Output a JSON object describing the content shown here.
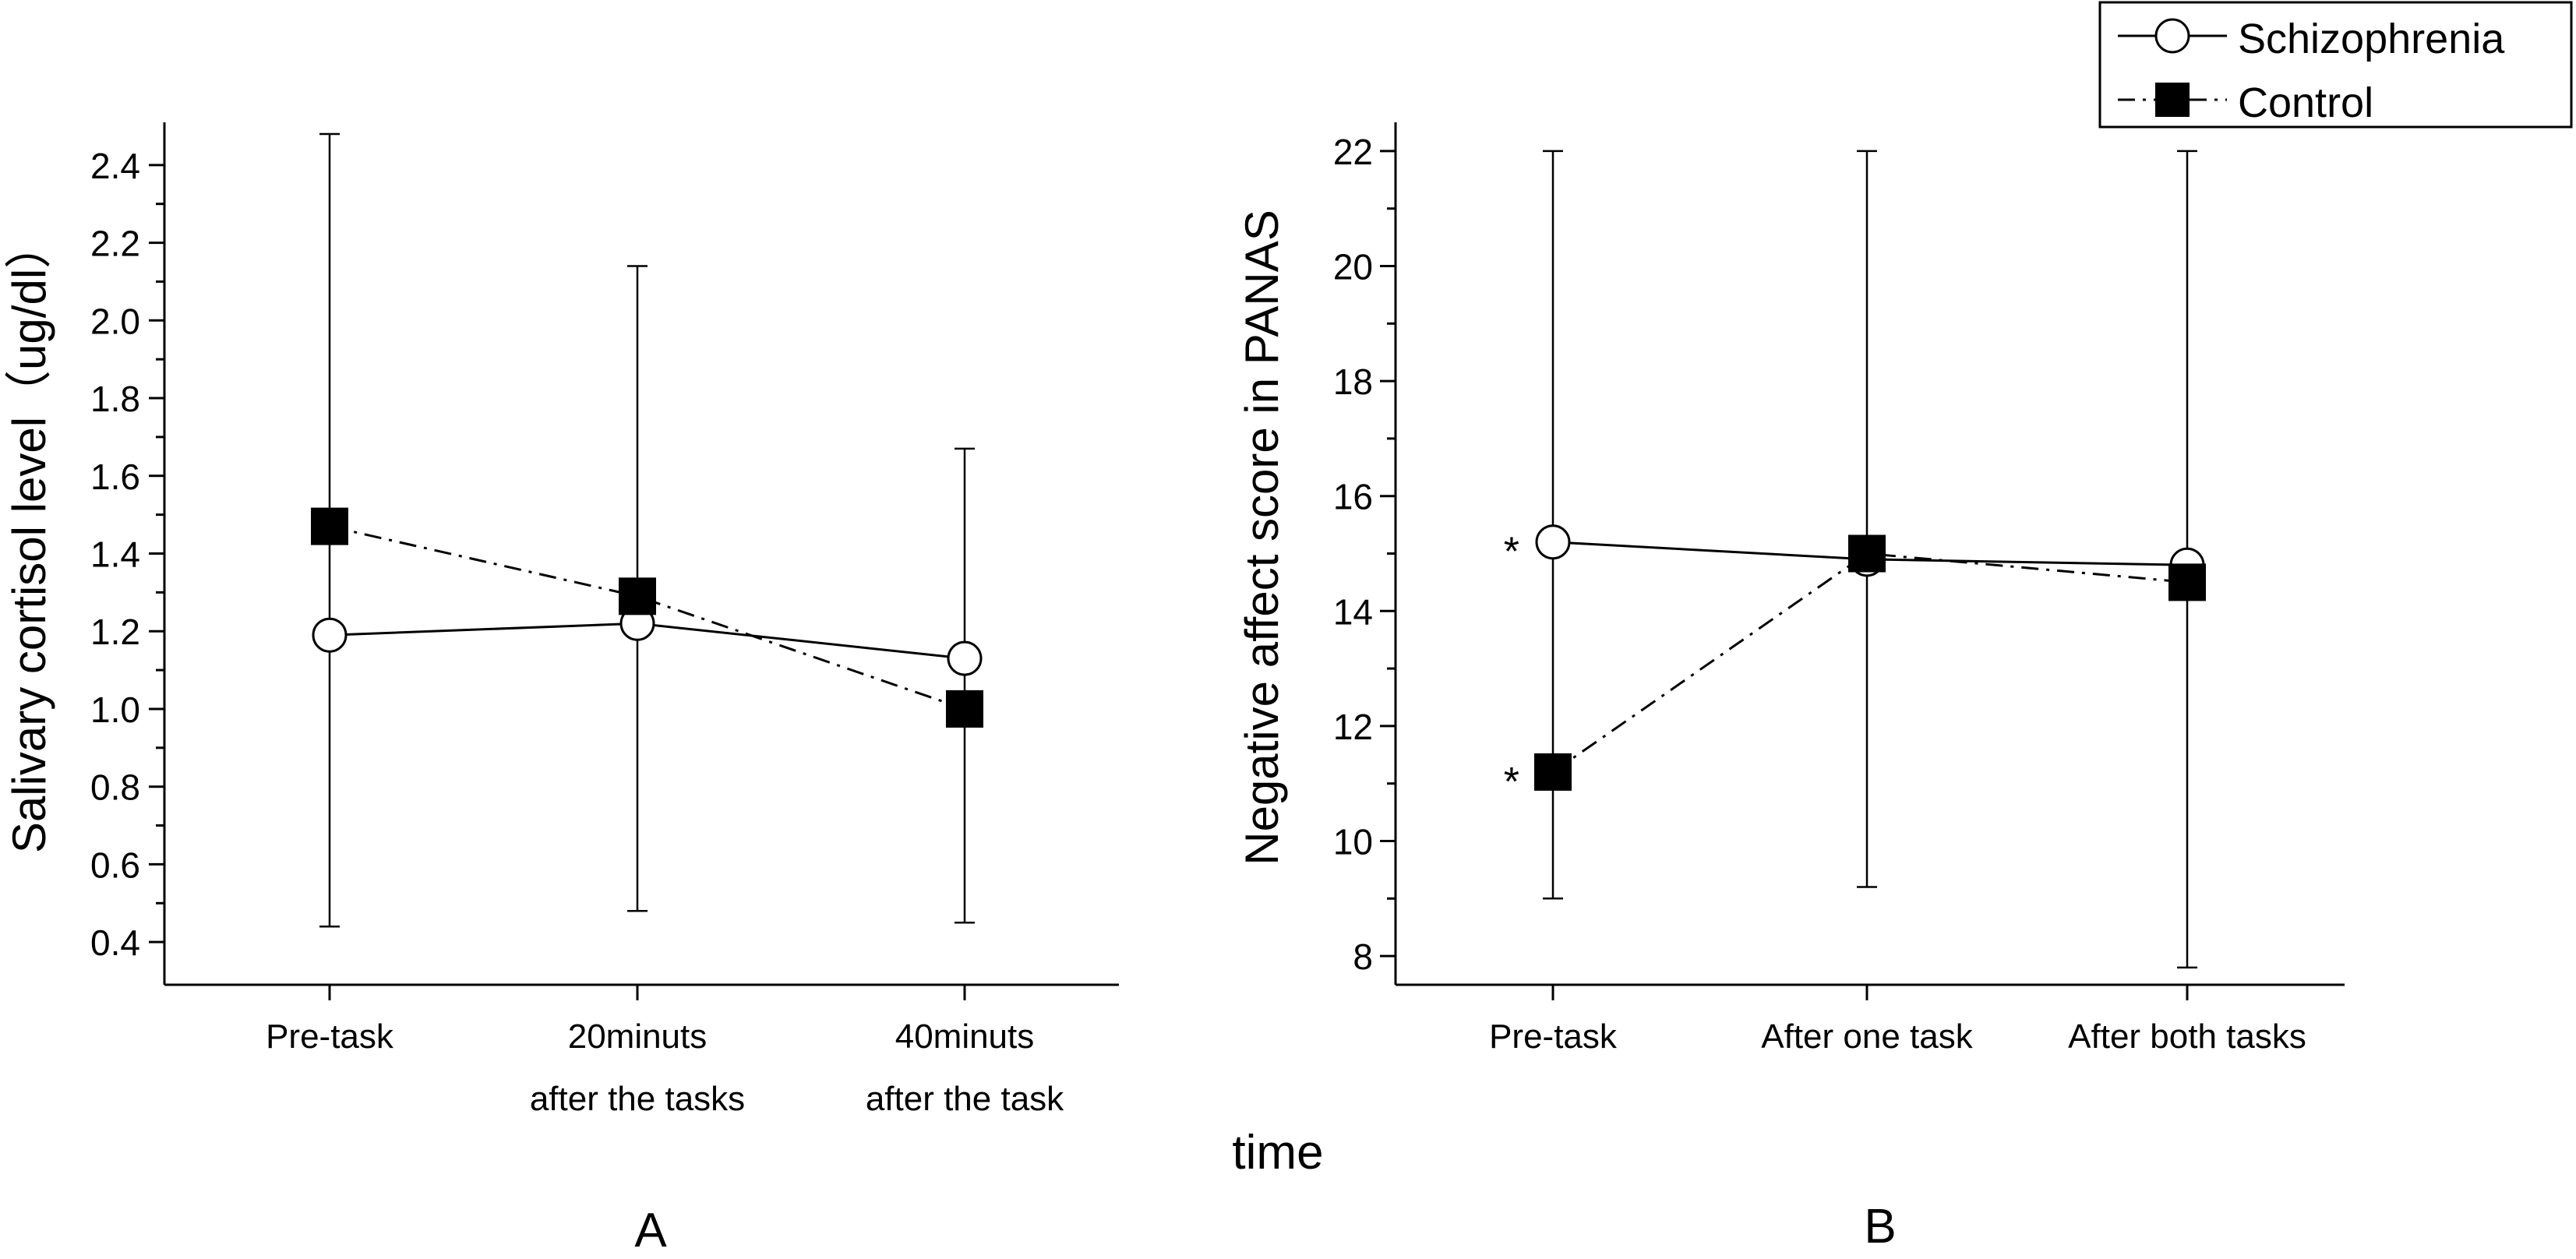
{
  "figure": {
    "shared_xlabel": "time",
    "legend": {
      "placement": "top-right",
      "entries": [
        {
          "name": "Schizophrenia",
          "line": "solid",
          "marker": "open-circle"
        },
        {
          "name": "Control",
          "line": "dash-dot",
          "marker": "filled-square"
        }
      ]
    }
  },
  "chart_data": [
    {
      "panel": "A",
      "type": "line",
      "title": "",
      "ylabel": "Salivary cortisol level（ug/dl）",
      "xlabel": "",
      "categories": [
        "Pre-task",
        "20minuts after the tasks",
        "40minuts after the task"
      ],
      "category_labels": [
        [
          "Pre-task"
        ],
        [
          "20minuts",
          "after the tasks"
        ],
        [
          "40minuts",
          "after the task"
        ]
      ],
      "ylim": [
        0.29,
        2.51
      ],
      "yticks": [
        0.4,
        0.6,
        0.8,
        1.0,
        1.2,
        1.4,
        1.6,
        1.8,
        2.0,
        2.2,
        2.4
      ],
      "ytick_labels": [
        "0.4",
        "0.6",
        "0.8",
        "1.0",
        "1.2",
        "1.4",
        "1.6",
        "1.8",
        "2.0",
        "2.2",
        "2.4"
      ],
      "yminor": [
        0.5,
        0.7,
        0.9,
        1.1,
        1.3,
        1.5,
        1.7,
        1.9,
        2.1,
        2.3
      ],
      "grid": false,
      "series": [
        {
          "name": "Schizophrenia",
          "values": [
            1.19,
            1.22,
            1.13
          ],
          "err_low": [
            0.44,
            0.48,
            0.45
          ],
          "err_high": [
            2.48,
            2.14,
            1.67
          ]
        },
        {
          "name": "Control",
          "values": [
            1.47,
            1.29,
            1.0
          ],
          "err_low": [
            0.44,
            0.48,
            0.45
          ],
          "err_high": [
            2.48,
            2.14,
            1.67
          ]
        }
      ],
      "annotations": []
    },
    {
      "panel": "B",
      "type": "line",
      "title": "",
      "ylabel": "Negative affect score in PANAS",
      "xlabel": "",
      "categories": [
        "Pre-task",
        "After one task",
        "After both tasks"
      ],
      "category_labels": [
        [
          "Pre-task"
        ],
        [
          "After one task"
        ],
        [
          "After both tasks"
        ]
      ],
      "ylim": [
        7.5,
        22.5
      ],
      "yticks": [
        8,
        10,
        12,
        14,
        16,
        18,
        20,
        22
      ],
      "ytick_labels": [
        "8",
        "10",
        "12",
        "14",
        "16",
        "18",
        "20",
        "22"
      ],
      "yminor": [
        9,
        11,
        13,
        15,
        17,
        19,
        21
      ],
      "grid": false,
      "series": [
        {
          "name": "Schizophrenia",
          "values": [
            15.2,
            14.9,
            14.8
          ],
          "err_low": [
            9.0,
            9.2,
            7.8
          ],
          "err_high": [
            22.0,
            22.0,
            22.0
          ]
        },
        {
          "name": "Control",
          "values": [
            11.2,
            15.0,
            14.5
          ],
          "err_low": [
            9.0,
            9.2,
            7.8
          ],
          "err_high": [
            22.0,
            22.0,
            22.0
          ]
        }
      ],
      "annotations": [
        {
          "text": "*",
          "series": "Schizophrenia",
          "category_index": 0
        },
        {
          "text": "*",
          "series": "Control",
          "category_index": 0
        }
      ]
    }
  ]
}
